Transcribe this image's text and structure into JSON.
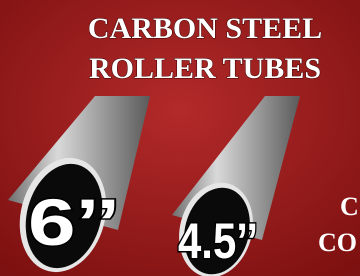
{
  "title": {
    "line1": "CARBON STEEL",
    "line2": "ROLLER TUBES"
  },
  "tubes": [
    {
      "label": "6’’"
    },
    {
      "label": "4.5’’"
    }
  ],
  "side_text": [
    "C",
    "CO"
  ]
}
